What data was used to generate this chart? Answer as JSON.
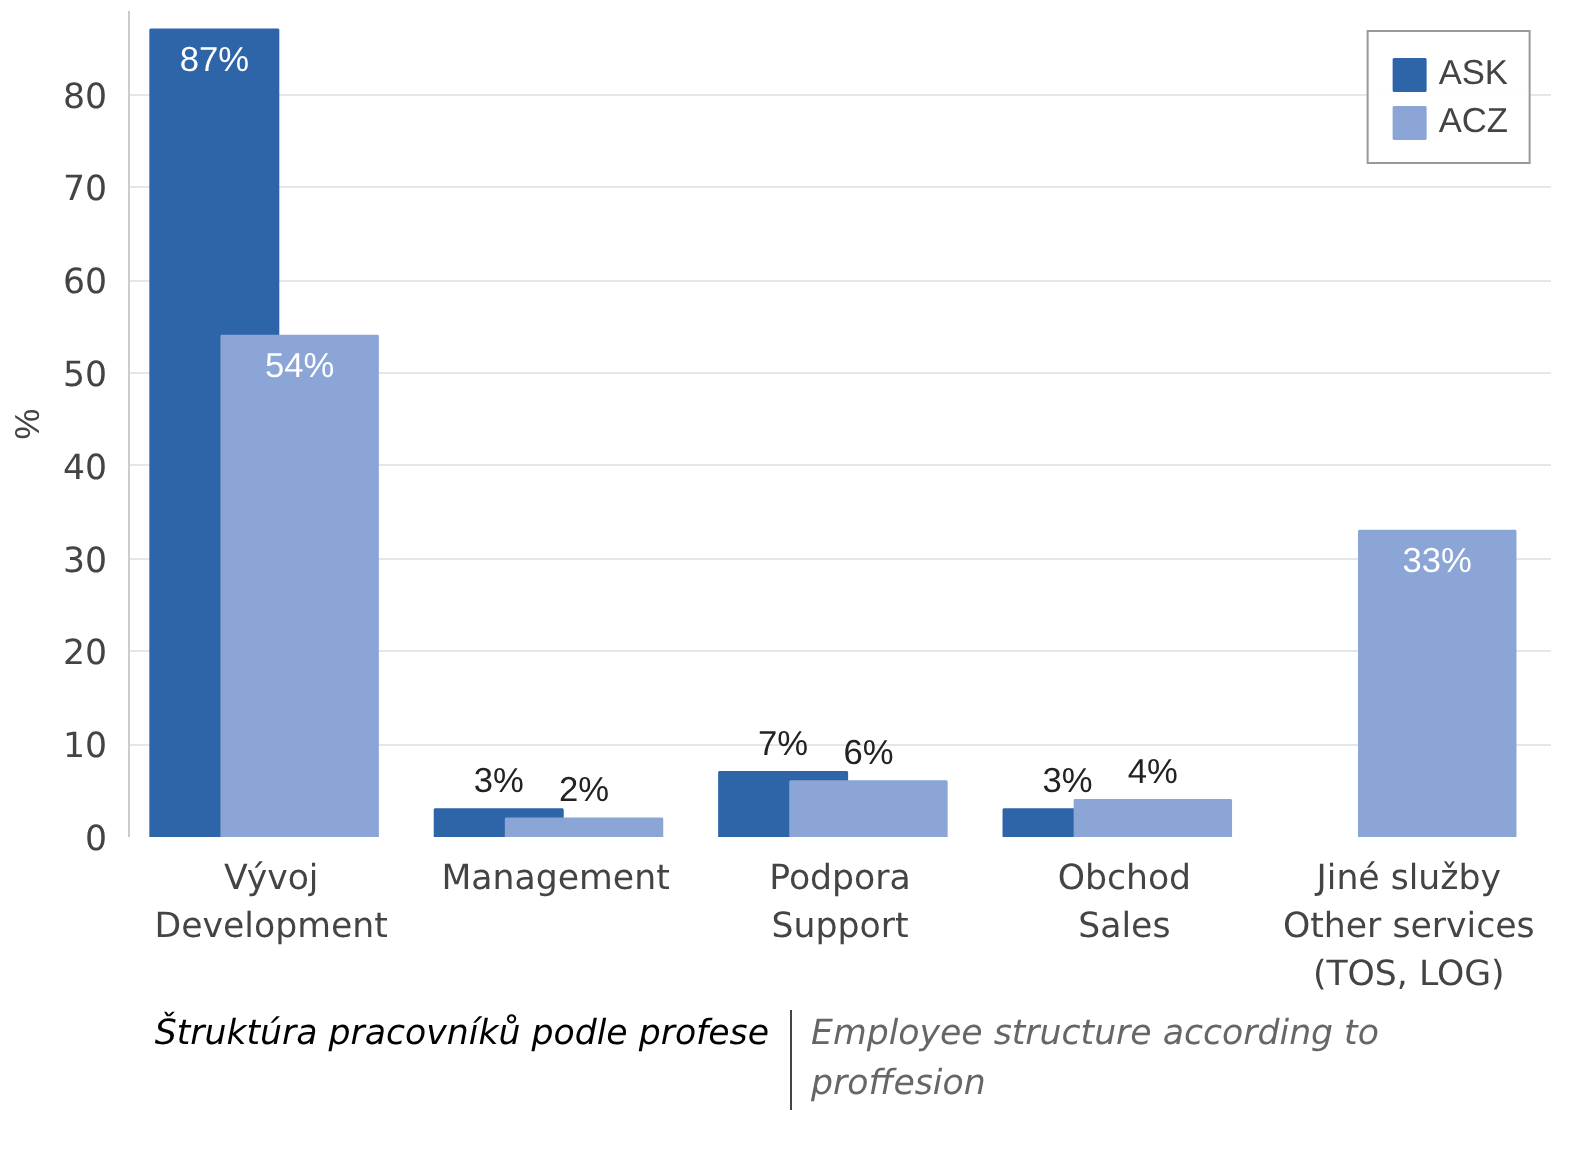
{
  "chart_data": {
    "type": "bar",
    "ylabel": "%",
    "categories": [
      "Vývoj\nDevelopment",
      "Management",
      "Podpora\nSupport",
      "Obchod\nSales",
      "Jiné služby\nOther services\n(TOS, LOG)"
    ],
    "series": [
      {
        "name": "ASK",
        "color": "#2e64a8",
        "values": [
          87,
          3,
          7,
          3,
          null
        ],
        "value_labels": [
          "87%",
          "3%",
          "7%",
          "3%",
          null
        ]
      },
      {
        "name": "ACZ",
        "color": "#8aa5d6",
        "values": [
          54,
          2,
          6,
          4,
          33
        ],
        "value_labels": [
          "54%",
          "2%",
          "6%",
          "4%",
          "33%"
        ]
      }
    ],
    "ylim": [
      0,
      89
    ],
    "yticks": [
      0,
      10,
      20,
      30,
      40,
      50,
      60,
      70,
      80
    ],
    "grid": "y",
    "legend": "top right",
    "annotations": [
      "Štruktúra pracovníků podle profese",
      "Employee structure according to proffesion"
    ]
  }
}
